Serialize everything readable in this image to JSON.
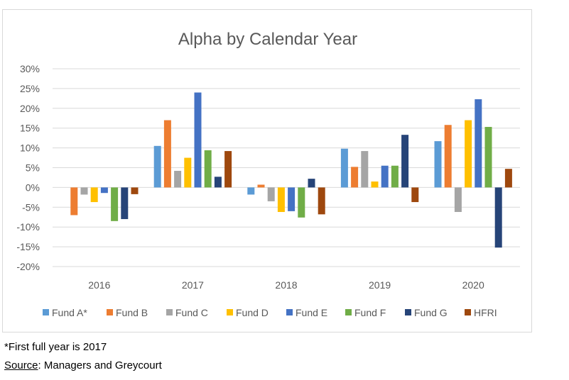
{
  "chart_data": {
    "type": "bar",
    "title": "Alpha by Calendar Year",
    "categories": [
      "2016",
      "2017",
      "2018",
      "2019",
      "2020"
    ],
    "ylim": [
      -20,
      30
    ],
    "yticks": [
      30,
      25,
      20,
      15,
      10,
      5,
      0,
      -5,
      -10,
      -15,
      -20
    ],
    "ytick_labels": [
      "30%",
      "25%",
      "20%",
      "15%",
      "10%",
      "5%",
      "0%",
      "-5%",
      "-10%",
      "-15%",
      "-20%"
    ],
    "grid": true,
    "legend_position": "bottom",
    "series": [
      {
        "name": "Fund A*",
        "color": "#5b9bd5",
        "values": [
          0,
          10.5,
          -1.8,
          9.8,
          11.7
        ]
      },
      {
        "name": "Fund B",
        "color": "#ed7d31",
        "values": [
          -7.0,
          17.0,
          0.7,
          5.2,
          15.8
        ]
      },
      {
        "name": "Fund C",
        "color": "#a5a5a5",
        "values": [
          -1.8,
          4.2,
          -3.5,
          9.2,
          -6.2
        ]
      },
      {
        "name": "Fund D",
        "color": "#ffc000",
        "values": [
          -3.7,
          7.5,
          -6.2,
          1.5,
          17.0
        ]
      },
      {
        "name": "Fund E",
        "color": "#4472c4",
        "values": [
          -1.4,
          24.0,
          -6.0,
          5.5,
          22.3
        ]
      },
      {
        "name": "Fund F",
        "color": "#70ad47",
        "values": [
          -8.5,
          9.4,
          -7.6,
          5.5,
          15.3
        ]
      },
      {
        "name": "Fund G",
        "color": "#264478",
        "values": [
          -8.0,
          2.7,
          2.2,
          13.3,
          -15.2
        ]
      },
      {
        "name": "HFRI",
        "color": "#9e480e",
        "values": [
          -1.7,
          9.2,
          -6.8,
          -3.7,
          4.7
        ]
      }
    ]
  },
  "notes": {
    "footnote": "*First full year is 2017",
    "source_label": "Source",
    "source_text": ": Managers and Greycourt"
  }
}
